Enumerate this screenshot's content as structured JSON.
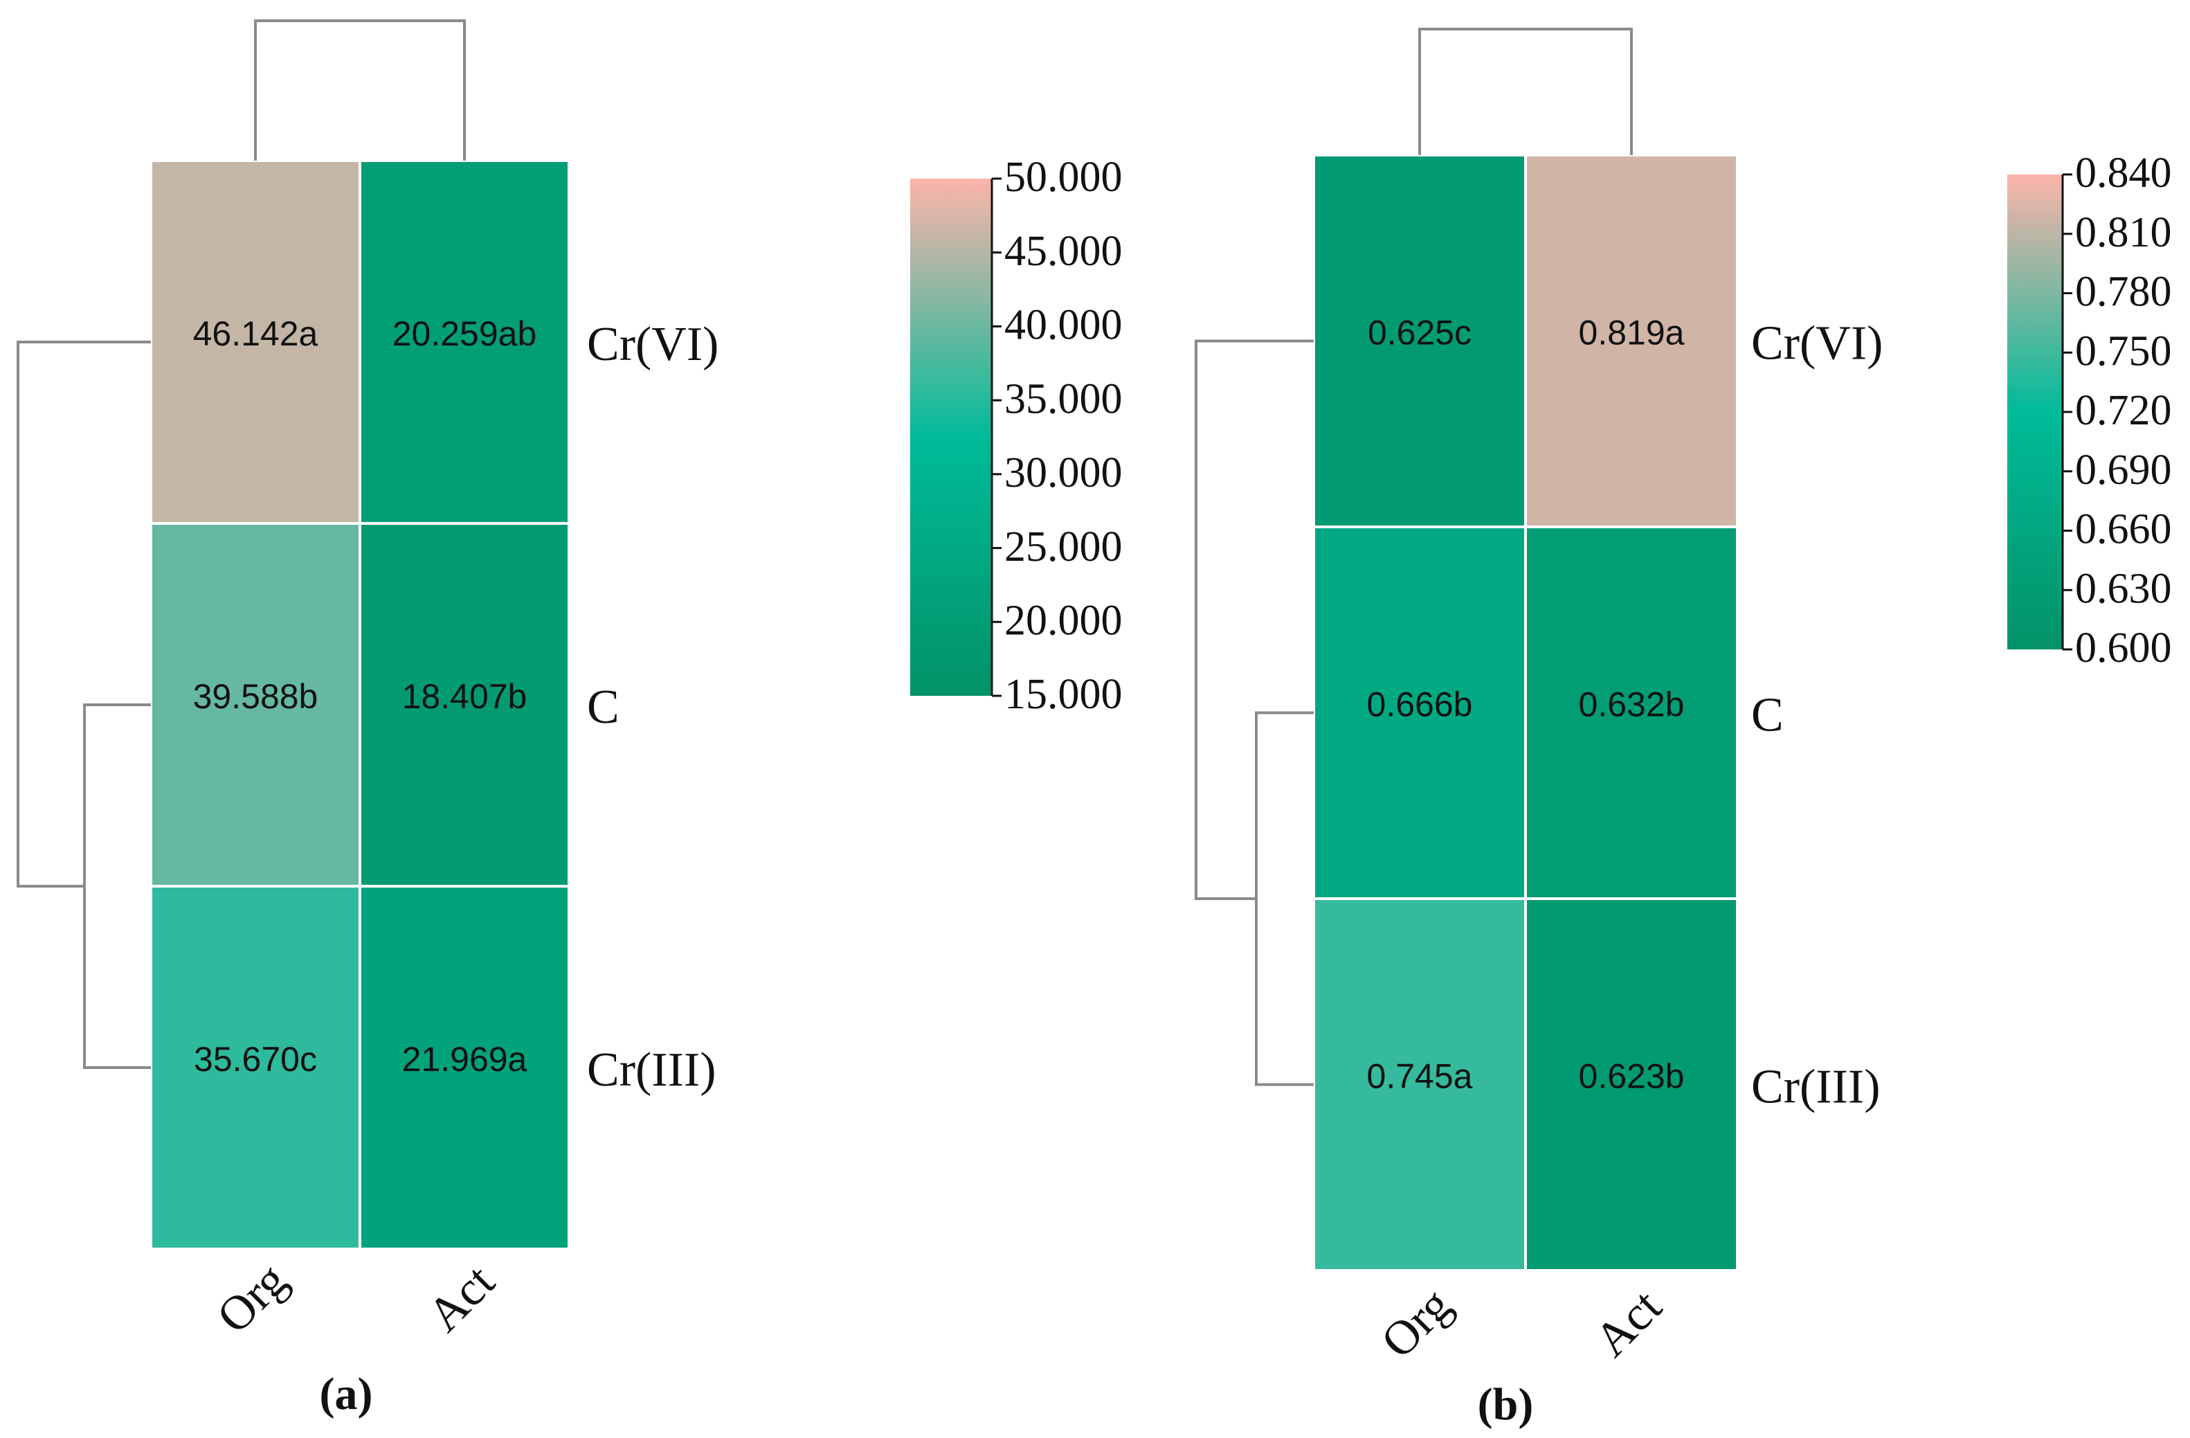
{
  "chart_data": [
    {
      "type": "heatmap",
      "panel_label": "(a)",
      "columns": [
        "Org",
        "Act"
      ],
      "rows": [
        "Cr(VI)",
        "C",
        "Cr(III)"
      ],
      "values": [
        [
          46.142,
          20.259
        ],
        [
          39.588,
          18.407
        ],
        [
          35.67,
          21.969
        ]
      ],
      "cell_labels": [
        [
          "46.142a",
          "20.259ab"
        ],
        [
          "39.588b",
          "18.407b"
        ],
        [
          "35.670c",
          "21.969a"
        ]
      ],
      "colorbar": {
        "min": 15.0,
        "max": 50.0,
        "ticks": [
          "50.000",
          "45.000",
          "40.000",
          "35.000",
          "30.000",
          "25.000",
          "20.000",
          "15.000"
        ],
        "tick_values": [
          50,
          45,
          40,
          35,
          30,
          25,
          20,
          15
        ]
      },
      "dendrogram": {
        "columns": "Org and Act joined",
        "rows": "C and Cr(III) joined first, then Cr(VI)"
      }
    },
    {
      "type": "heatmap",
      "panel_label": "(b)",
      "columns": [
        "Org",
        "Act"
      ],
      "rows": [
        "Cr(VI)",
        "C",
        "Cr(III)"
      ],
      "values": [
        [
          0.625,
          0.819
        ],
        [
          0.666,
          0.632
        ],
        [
          0.745,
          0.623
        ]
      ],
      "cell_labels": [
        [
          "0.625c",
          "0.819a"
        ],
        [
          "0.666b",
          "0.632b"
        ],
        [
          "0.745a",
          "0.623b"
        ]
      ],
      "colorbar": {
        "min": 0.6,
        "max": 0.84,
        "ticks": [
          "0.840",
          "0.810",
          "0.780",
          "0.750",
          "0.720",
          "0.690",
          "0.660",
          "0.630",
          "0.600"
        ],
        "tick_values": [
          0.84,
          0.81,
          0.78,
          0.75,
          0.72,
          0.69,
          0.66,
          0.63,
          0.6
        ]
      },
      "dendrogram": {
        "columns": "Org and Act joined",
        "rows": "C and Cr(III) joined first, then Cr(VI)"
      }
    }
  ],
  "colors": {
    "low": "#039267",
    "mid": "#00bb99",
    "high": "#fcb4aa",
    "dendrogram": "#8a8a8a",
    "cell_border": "#ffffff"
  }
}
